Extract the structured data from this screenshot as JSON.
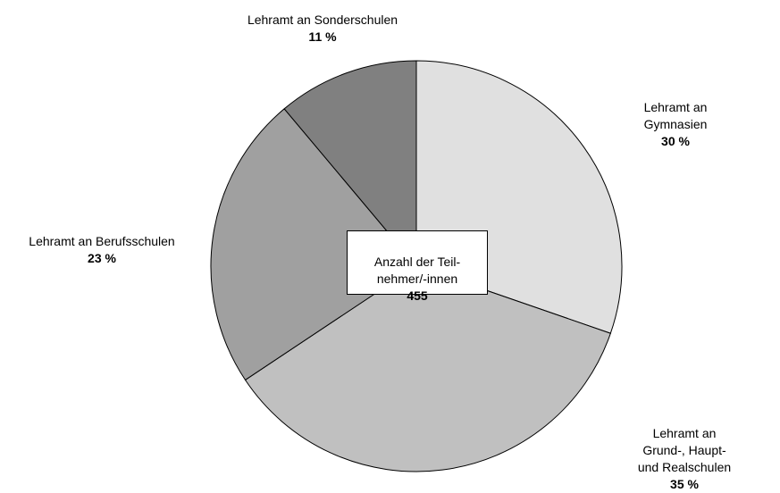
{
  "chart_data": {
    "type": "pie",
    "categories": [
      "Lehramt an Gymnasien",
      "Lehramt an Grund-, Haupt-\nund Realschulen",
      "Lehramt an Berufsschulen",
      "Lehramt an Sonderschulen"
    ],
    "values": [
      30,
      35,
      23,
      11
    ],
    "value_labels": [
      "30 %",
      "35 %",
      "23 %",
      "11 %"
    ],
    "colors": [
      "#e0e0e0",
      "#c0c0c0",
      "#a0a0a0",
      "#808080"
    ],
    "total_label": "Anzahl der Teil-\nnehmer/-innen",
    "total": 455
  }
}
